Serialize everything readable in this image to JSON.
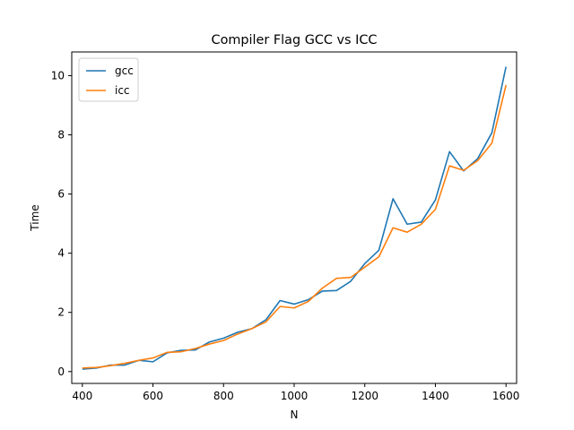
{
  "chart_data": {
    "type": "line",
    "title": "Compiler Flag GCC vs ICC",
    "xlabel": "N",
    "ylabel": "Time",
    "xlim": [
      370,
      1630
    ],
    "ylim": [
      -0.4,
      10.8
    ],
    "xticks": [
      400,
      600,
      800,
      1000,
      1200,
      1400,
      1600
    ],
    "yticks": [
      0,
      2,
      4,
      6,
      8,
      10
    ],
    "legend_position": "top-left",
    "grid": false,
    "x": [
      400,
      440,
      480,
      520,
      560,
      600,
      640,
      680,
      720,
      760,
      800,
      840,
      880,
      920,
      960,
      1000,
      1040,
      1080,
      1120,
      1160,
      1200,
      1240,
      1280,
      1320,
      1360,
      1400,
      1440,
      1480,
      1520,
      1560,
      1600
    ],
    "series": [
      {
        "name": "gcc",
        "color": "#1f77b4",
        "values": [
          0.08,
          0.12,
          0.22,
          0.22,
          0.38,
          0.33,
          0.63,
          0.72,
          0.73,
          1.0,
          1.13,
          1.33,
          1.45,
          1.75,
          2.4,
          2.28,
          2.43,
          2.72,
          2.74,
          3.05,
          3.65,
          4.1,
          5.84,
          4.98,
          5.05,
          5.8,
          7.43,
          6.78,
          7.2,
          8.07,
          10.3
        ]
      },
      {
        "name": "icc",
        "color": "#ff7f0e",
        "values": [
          0.12,
          0.14,
          0.2,
          0.28,
          0.38,
          0.46,
          0.65,
          0.67,
          0.78,
          0.93,
          1.05,
          1.27,
          1.45,
          1.68,
          2.2,
          2.15,
          2.37,
          2.82,
          3.15,
          3.18,
          3.53,
          3.88,
          4.86,
          4.71,
          4.98,
          5.48,
          6.95,
          6.8,
          7.13,
          7.72,
          9.68
        ]
      }
    ]
  }
}
